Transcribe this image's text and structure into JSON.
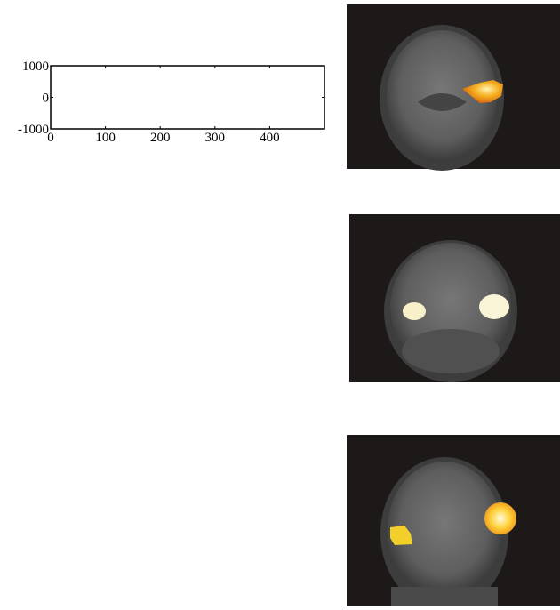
{
  "chart_data": {
    "type": "line",
    "xlim": [
      0,
      500
    ],
    "ylim": [
      -1000,
      1000
    ],
    "xticks": [
      0,
      100,
      200,
      300,
      400
    ],
    "yticks": [
      -1000,
      0,
      1000
    ]
  }
}
